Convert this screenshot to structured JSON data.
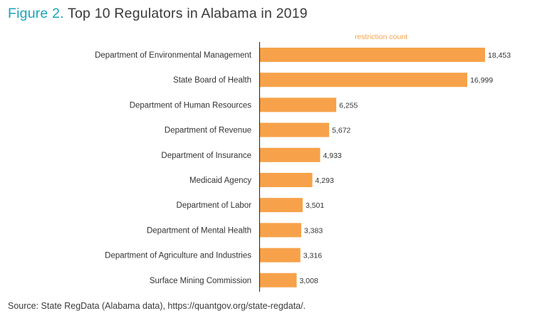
{
  "figure": {
    "label": "Figure 2.",
    "title": "Top 10 Regulators in Alabama in 2019"
  },
  "source": "Source: State RegData (Alabama data), https://quantgov.org/state-regdata/.",
  "chart_data": {
    "type": "bar",
    "orientation": "horizontal",
    "title": "Top 10 Regulators in Alabama in 2019",
    "legend": [
      "restriction count"
    ],
    "legend_position": "top-right",
    "bar_color": "#f7a24a",
    "categories": [
      "Department of Environmental Management",
      "State Board of Health",
      "Department of Human Resources",
      "Department of Revenue",
      "Department of Insurance",
      "Medicaid Agency",
      "Department of Labor",
      "Department of Mental Health",
      "Department of Agriculture and Industries",
      "Surface Mining Commission"
    ],
    "values": [
      18453,
      16999,
      6255,
      5672,
      4933,
      4293,
      3501,
      3383,
      3316,
      3008
    ],
    "value_labels": [
      "18,453",
      "16,999",
      "6,255",
      "5,672",
      "4,933",
      "4,293",
      "3,501",
      "3,383",
      "3,316",
      "3,008"
    ],
    "xlim": [
      0,
      18453
    ],
    "grid": false
  }
}
